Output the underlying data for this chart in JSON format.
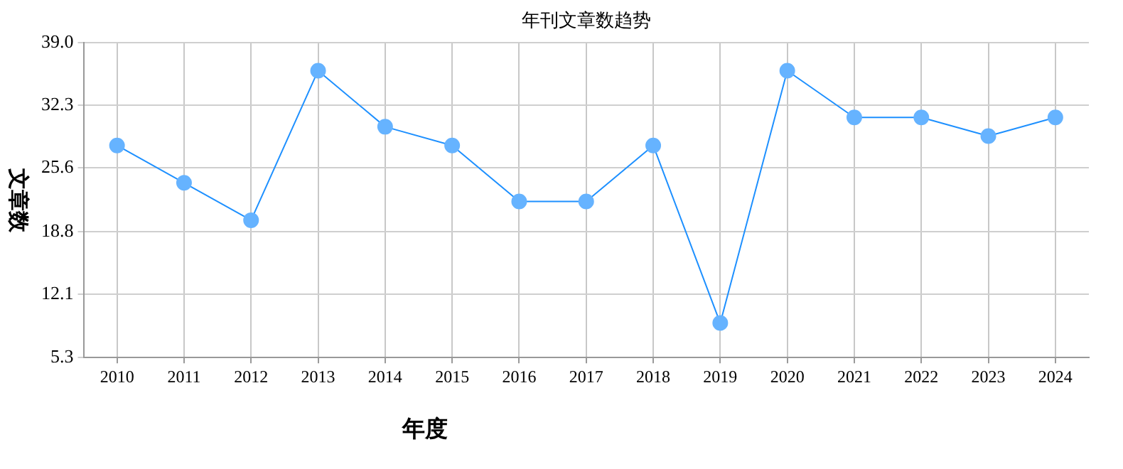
{
  "chart_data": {
    "type": "line",
    "title": "年刊文章数趋势",
    "xlabel": "年度",
    "ylabel": "文章数",
    "categories": [
      "2010",
      "2011",
      "2012",
      "2013",
      "2014",
      "2015",
      "2016",
      "2017",
      "2018",
      "2019",
      "2020",
      "2021",
      "2022",
      "2023",
      "2024"
    ],
    "series": [
      {
        "color": "#1e90ff",
        "values": [
          28,
          24,
          20,
          36,
          30,
          28,
          22,
          22,
          28,
          9,
          36,
          31,
          31,
          29,
          31
        ]
      }
    ],
    "ylim": [
      5.3,
      39
    ],
    "yticks": [
      5.3,
      12.1,
      18.8,
      25.6,
      32.3,
      {
        "value": 39,
        "label": "39.0"
      }
    ],
    "grid": true,
    "marker": "circle",
    "legend": false
  }
}
